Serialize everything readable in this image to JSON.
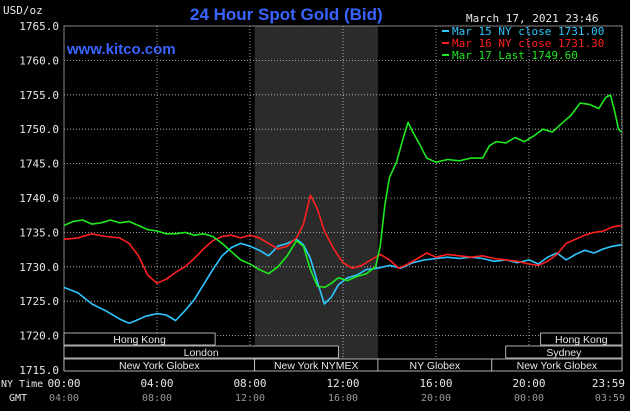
{
  "header": {
    "title": "24 Hour Spot Gold (Bid)",
    "site": "www.kitco.com",
    "timestamp": "March 17, 2021 23:46",
    "unit": "USD/oz",
    "tz_primary": "NY Time",
    "tz_secondary": "GMT"
  },
  "colors": {
    "background": "#000000",
    "grid": "#c8c8c8",
    "title": "#3a64ff",
    "site": "#3a64ff",
    "series_mar15": "#2fc6ff",
    "series_mar16": "#ff2020",
    "series_mar17": "#1ee81e",
    "band_fill": "#000000",
    "band_border": "#d8d8d8",
    "highlight": "#2b2b2b"
  },
  "sessions": {
    "row1": [
      {
        "label": "Hong Kong",
        "from": 0.0,
        "to": 6.5
      },
      {
        "label": "Hong Kong",
        "from": 20.5,
        "to": 24.0
      }
    ],
    "row2": [
      {
        "label": "London",
        "from": 0.0,
        "to": 11.8
      },
      {
        "label": "Sydney",
        "from": 19.0,
        "to": 24.0
      }
    ],
    "row3": [
      {
        "label": "New York Globex",
        "from": 0.0,
        "to": 8.2
      },
      {
        "label": "New York NYMEX",
        "from": 8.2,
        "to": 13.5
      },
      {
        "label": "NY Globex",
        "from": 13.5,
        "to": 18.4
      },
      {
        "label": "New York Globex",
        "from": 18.4,
        "to": 24.0
      }
    ]
  },
  "chart_data": {
    "type": "line",
    "title": "24 Hour Spot Gold (Bid)",
    "ylabel": "USD/oz",
    "xlim": [
      0,
      24
    ],
    "ylim": [
      1715,
      1765
    ],
    "highlight_hours": [
      8.2,
      13.5
    ],
    "yticks": [
      1715,
      1720,
      1725,
      1730,
      1735,
      1740,
      1745,
      1750,
      1755,
      1760,
      1765
    ],
    "ytick_labels": [
      "1715.0",
      "1720.0",
      "1725.0",
      "1730.0",
      "1735.0",
      "1740.0",
      "1745.0",
      "1750.0",
      "1755.0",
      "1760.0",
      "1765.0"
    ],
    "xticks_primary": [
      {
        "hour": 0,
        "label": "00:00"
      },
      {
        "hour": 4,
        "label": "04:00"
      },
      {
        "hour": 8,
        "label": "08:00"
      },
      {
        "hour": 12,
        "label": "12:00"
      },
      {
        "hour": 16,
        "label": "16:00"
      },
      {
        "hour": 20,
        "label": "20:00"
      },
      {
        "hour": 23.98,
        "label": "23:59"
      }
    ],
    "xticks_secondary": [
      {
        "hour": 0,
        "label": "04:00"
      },
      {
        "hour": 4,
        "label": "08:00"
      },
      {
        "hour": 8,
        "label": "12:00"
      },
      {
        "hour": 12,
        "label": "16:00"
      },
      {
        "hour": 16,
        "label": "20:00"
      },
      {
        "hour": 20,
        "label": "00:00"
      },
      {
        "hour": 23.98,
        "label": "03:59"
      }
    ],
    "legend_position": "top-right",
    "series": [
      {
        "name": "Mar 15 NY close 1731.00",
        "color": "#2fc6ff",
        "points": [
          [
            0,
            1727.0
          ],
          [
            0.6,
            1726.2
          ],
          [
            1.2,
            1724.6
          ],
          [
            1.8,
            1723.6
          ],
          [
            2.4,
            1722.4
          ],
          [
            2.8,
            1721.8
          ],
          [
            3.1,
            1722.2
          ],
          [
            3.5,
            1722.8
          ],
          [
            4.0,
            1723.2
          ],
          [
            4.4,
            1723.0
          ],
          [
            4.8,
            1722.2
          ],
          [
            5.2,
            1723.6
          ],
          [
            5.6,
            1725.2
          ],
          [
            6.0,
            1727.4
          ],
          [
            6.4,
            1729.6
          ],
          [
            6.8,
            1731.6
          ],
          [
            7.2,
            1732.8
          ],
          [
            7.6,
            1733.4
          ],
          [
            8.0,
            1733.0
          ],
          [
            8.4,
            1732.4
          ],
          [
            8.8,
            1731.6
          ],
          [
            9.2,
            1733.0
          ],
          [
            9.6,
            1733.4
          ],
          [
            10.0,
            1734.0
          ],
          [
            10.3,
            1733.2
          ],
          [
            10.6,
            1731.2
          ],
          [
            10.9,
            1727.8
          ],
          [
            11.2,
            1724.6
          ],
          [
            11.5,
            1725.6
          ],
          [
            11.8,
            1727.4
          ],
          [
            12.2,
            1728.4
          ],
          [
            12.6,
            1728.8
          ],
          [
            13.0,
            1729.6
          ],
          [
            13.5,
            1729.8
          ],
          [
            14.0,
            1730.2
          ],
          [
            14.5,
            1729.8
          ],
          [
            15.0,
            1730.6
          ],
          [
            15.5,
            1731.0
          ],
          [
            16.0,
            1731.2
          ],
          [
            16.5,
            1731.4
          ],
          [
            17.0,
            1731.2
          ],
          [
            17.5,
            1731.4
          ],
          [
            18.0,
            1731.2
          ],
          [
            18.5,
            1730.8
          ],
          [
            19.0,
            1731.0
          ],
          [
            19.5,
            1730.6
          ],
          [
            20.0,
            1731.0
          ],
          [
            20.4,
            1730.4
          ],
          [
            20.8,
            1731.4
          ],
          [
            21.2,
            1732.0
          ],
          [
            21.6,
            1731.0
          ],
          [
            22.0,
            1731.8
          ],
          [
            22.4,
            1732.4
          ],
          [
            22.8,
            1732.0
          ],
          [
            23.2,
            1732.6
          ],
          [
            23.6,
            1733.0
          ],
          [
            23.98,
            1733.2
          ]
        ]
      },
      {
        "name": "Mar 16 NY close 1731.30",
        "color": "#ff2020",
        "points": [
          [
            0,
            1734.0
          ],
          [
            0.6,
            1734.2
          ],
          [
            1.2,
            1734.8
          ],
          [
            1.8,
            1734.4
          ],
          [
            2.4,
            1734.2
          ],
          [
            2.8,
            1733.4
          ],
          [
            3.2,
            1731.6
          ],
          [
            3.6,
            1728.8
          ],
          [
            4.0,
            1727.6
          ],
          [
            4.4,
            1728.2
          ],
          [
            4.8,
            1729.2
          ],
          [
            5.2,
            1730.0
          ],
          [
            5.6,
            1731.2
          ],
          [
            6.0,
            1732.6
          ],
          [
            6.4,
            1733.8
          ],
          [
            6.8,
            1734.4
          ],
          [
            7.2,
            1734.6
          ],
          [
            7.6,
            1734.2
          ],
          [
            8.0,
            1734.6
          ],
          [
            8.4,
            1734.2
          ],
          [
            8.8,
            1733.4
          ],
          [
            9.2,
            1732.6
          ],
          [
            9.6,
            1733.0
          ],
          [
            10.0,
            1734.2
          ],
          [
            10.3,
            1736.2
          ],
          [
            10.6,
            1740.4
          ],
          [
            10.9,
            1738.4
          ],
          [
            11.2,
            1735.2
          ],
          [
            11.6,
            1732.6
          ],
          [
            12.0,
            1730.6
          ],
          [
            12.4,
            1729.8
          ],
          [
            12.8,
            1730.2
          ],
          [
            13.2,
            1731.0
          ],
          [
            13.6,
            1731.8
          ],
          [
            14.0,
            1731.0
          ],
          [
            14.4,
            1729.8
          ],
          [
            14.8,
            1730.4
          ],
          [
            15.2,
            1731.2
          ],
          [
            15.6,
            1732.0
          ],
          [
            16.0,
            1731.4
          ],
          [
            16.5,
            1731.8
          ],
          [
            17.0,
            1731.6
          ],
          [
            17.5,
            1731.4
          ],
          [
            18.0,
            1731.6
          ],
          [
            18.5,
            1731.2
          ],
          [
            19.0,
            1731.0
          ],
          [
            19.5,
            1730.8
          ],
          [
            20.0,
            1730.4
          ],
          [
            20.4,
            1730.2
          ],
          [
            20.8,
            1730.8
          ],
          [
            21.2,
            1731.8
          ],
          [
            21.6,
            1733.4
          ],
          [
            22.0,
            1734.0
          ],
          [
            22.4,
            1734.6
          ],
          [
            22.8,
            1735.0
          ],
          [
            23.2,
            1735.2
          ],
          [
            23.6,
            1735.8
          ],
          [
            23.98,
            1736.0
          ]
        ]
      },
      {
        "name": "Mar 17 Last 1749.60",
        "color": "#1ee81e",
        "points": [
          [
            0,
            1736.0
          ],
          [
            0.4,
            1736.6
          ],
          [
            0.8,
            1736.8
          ],
          [
            1.2,
            1736.2
          ],
          [
            1.6,
            1736.4
          ],
          [
            2.0,
            1736.8
          ],
          [
            2.4,
            1736.4
          ],
          [
            2.8,
            1736.6
          ],
          [
            3.2,
            1736.0
          ],
          [
            3.6,
            1735.4
          ],
          [
            4.0,
            1735.2
          ],
          [
            4.4,
            1734.8
          ],
          [
            4.8,
            1734.8
          ],
          [
            5.2,
            1735.0
          ],
          [
            5.6,
            1734.6
          ],
          [
            6.0,
            1734.8
          ],
          [
            6.4,
            1734.4
          ],
          [
            6.8,
            1733.4
          ],
          [
            7.2,
            1732.2
          ],
          [
            7.6,
            1731.0
          ],
          [
            8.0,
            1730.4
          ],
          [
            8.4,
            1729.6
          ],
          [
            8.8,
            1729.0
          ],
          [
            9.2,
            1730.0
          ],
          [
            9.6,
            1731.6
          ],
          [
            10.0,
            1733.8
          ],
          [
            10.3,
            1733.0
          ],
          [
            10.6,
            1729.6
          ],
          [
            10.9,
            1727.2
          ],
          [
            11.2,
            1727.0
          ],
          [
            11.5,
            1727.6
          ],
          [
            11.8,
            1728.4
          ],
          [
            12.2,
            1728.0
          ],
          [
            12.6,
            1728.6
          ],
          [
            13.0,
            1729.0
          ],
          [
            13.4,
            1730.0
          ],
          [
            13.6,
            1733.0
          ],
          [
            13.8,
            1739.0
          ],
          [
            14.0,
            1743.0
          ],
          [
            14.3,
            1745.2
          ],
          [
            14.6,
            1748.8
          ],
          [
            14.8,
            1751.0
          ],
          [
            15.0,
            1749.6
          ],
          [
            15.3,
            1747.8
          ],
          [
            15.6,
            1745.8
          ],
          [
            16.0,
            1745.2
          ],
          [
            16.5,
            1745.6
          ],
          [
            17.0,
            1745.4
          ],
          [
            17.5,
            1745.8
          ],
          [
            18.0,
            1745.8
          ],
          [
            18.3,
            1747.6
          ],
          [
            18.6,
            1748.2
          ],
          [
            19.0,
            1748.0
          ],
          [
            19.4,
            1748.8
          ],
          [
            19.8,
            1748.2
          ],
          [
            20.2,
            1749.0
          ],
          [
            20.6,
            1750.0
          ],
          [
            21.0,
            1749.6
          ],
          [
            21.4,
            1750.8
          ],
          [
            21.8,
            1752.0
          ],
          [
            22.2,
            1753.8
          ],
          [
            22.6,
            1753.6
          ],
          [
            23.0,
            1753.0
          ],
          [
            23.3,
            1754.6
          ],
          [
            23.5,
            1755.0
          ],
          [
            23.7,
            1752.4
          ],
          [
            23.85,
            1750.0
          ],
          [
            23.98,
            1749.6
          ]
        ]
      }
    ]
  }
}
